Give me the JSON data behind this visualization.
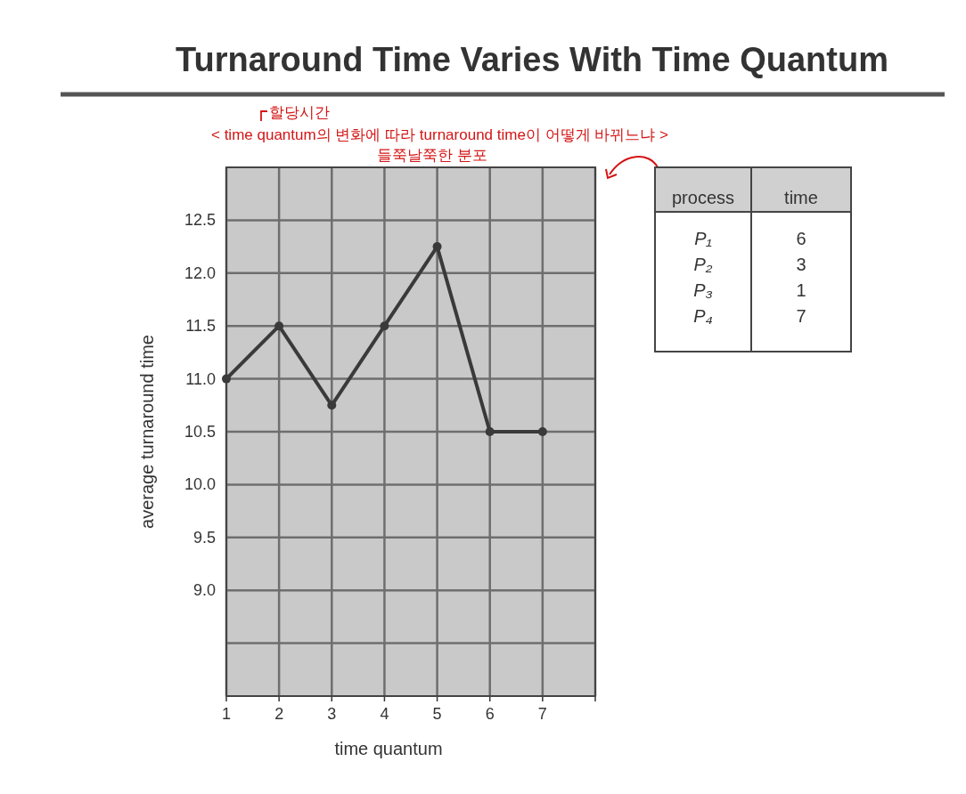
{
  "chart_data": [
    {
      "type": "line",
      "title": "Turnaround Time Varies With Time Quantum",
      "xlabel": "time quantum",
      "ylabel": "average turnaround time",
      "x": [
        1,
        2,
        3,
        4,
        5,
        6,
        7
      ],
      "series": [
        {
          "color": "#3a3a3a",
          "values": [
            11.0,
            11.5,
            10.75,
            11.5,
            12.25,
            10.5,
            10.5
          ]
        }
      ],
      "xlim": [
        1,
        8
      ],
      "xticks": [
        1,
        2,
        3,
        4,
        5,
        6,
        7,
        {
          "value": 8,
          "label": null
        }
      ],
      "ylim": [
        8.0,
        13.0
      ],
      "yticks": [
        {
          "value": 8.5,
          "label": null
        },
        {
          "value": 9.0,
          "label": "9.0"
        },
        {
          "value": 9.5,
          "label": "9.5"
        },
        {
          "value": 10.0,
          "label": "10.0"
        },
        {
          "value": 10.5,
          "label": "10.5"
        },
        {
          "value": 11.0,
          "label": "11.0"
        },
        {
          "value": 11.5,
          "label": "11.5"
        },
        {
          "value": 12.0,
          "label": "12.0"
        },
        {
          "value": 12.5,
          "label": "12.5"
        }
      ],
      "grid": true,
      "marker": "circle",
      "line_style": "solid",
      "annotations": [
        "할당시간",
        "< time quantum의 변화에 따라 turnaround time이 어떻게 바뀌느냐 >",
        "들쭉날쭉한 분포"
      ]
    },
    {
      "type": "other",
      "annotations": [
        "process",
        "time",
        "P₁",
        "6",
        "P₂",
        "3",
        "P₃",
        "1",
        "P₄",
        "7"
      ]
    }
  ]
}
